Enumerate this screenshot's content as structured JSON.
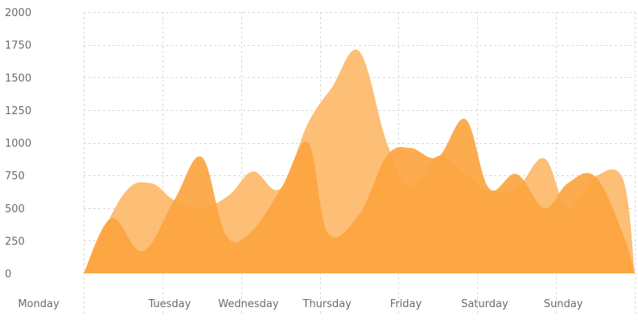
{
  "chart_data": {
    "type": "area",
    "categories": [
      "Monday",
      "Tuesday",
      "Wednesday",
      "Thursday",
      "Friday",
      "Saturday",
      "Sunday"
    ],
    "ylim": [
      0,
      2000
    ],
    "yticks": [
      0,
      250,
      500,
      750,
      1000,
      1250,
      1500,
      1750,
      2000
    ],
    "grid": true,
    "legend": "none",
    "series": [
      {
        "color": "#fdb766",
        "opacity": 0.9,
        "points": [
          [
            0.0,
            0
          ],
          [
            0.5,
            600
          ],
          [
            0.85,
            690
          ],
          [
            1.15,
            560
          ],
          [
            1.5,
            500
          ],
          [
            1.85,
            600
          ],
          [
            2.15,
            780
          ],
          [
            2.5,
            650
          ],
          [
            2.85,
            1150
          ],
          [
            3.15,
            1420
          ],
          [
            3.5,
            1700
          ],
          [
            3.85,
            1000
          ],
          [
            4.15,
            650
          ],
          [
            4.5,
            900
          ],
          [
            4.85,
            760
          ],
          [
            5.15,
            630
          ],
          [
            5.5,
            650
          ],
          [
            5.85,
            880
          ],
          [
            6.15,
            500
          ],
          [
            6.5,
            740
          ],
          [
            6.85,
            720
          ],
          [
            7.0,
            0
          ]
        ]
      },
      {
        "color": "#fca440",
        "opacity": 0.92,
        "points": [
          [
            0.0,
            0
          ],
          [
            0.35,
            420
          ],
          [
            0.75,
            170
          ],
          [
            1.15,
            560
          ],
          [
            1.5,
            890
          ],
          [
            1.8,
            300
          ],
          [
            2.1,
            300
          ],
          [
            2.5,
            640
          ],
          [
            2.85,
            1000
          ],
          [
            3.1,
            310
          ],
          [
            3.5,
            450
          ],
          [
            3.85,
            900
          ],
          [
            4.15,
            960
          ],
          [
            4.5,
            890
          ],
          [
            4.85,
            1180
          ],
          [
            5.15,
            650
          ],
          [
            5.5,
            760
          ],
          [
            5.85,
            500
          ],
          [
            6.15,
            690
          ],
          [
            6.5,
            740
          ],
          [
            6.85,
            300
          ],
          [
            7.0,
            0
          ]
        ]
      }
    ]
  }
}
